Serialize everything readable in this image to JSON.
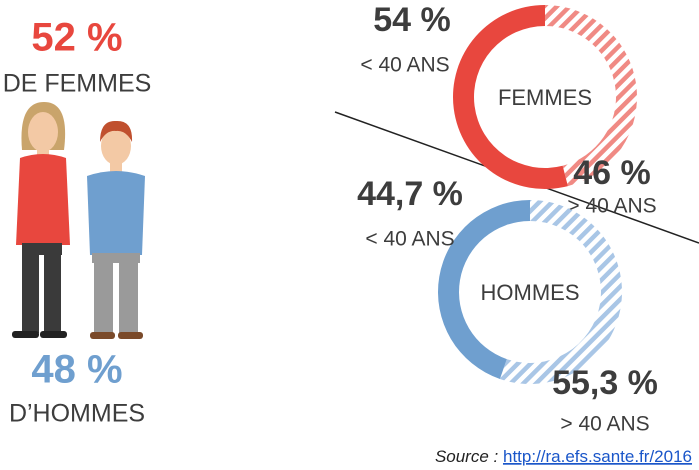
{
  "chart_data": [
    {
      "type": "figures",
      "categories": [
        "DE FEMMES",
        "D’HOMMES"
      ],
      "values": [
        52,
        48
      ],
      "value_labels": [
        "52 %",
        "48 %"
      ],
      "colors": [
        "#e8473e",
        "#6f9fcf"
      ]
    },
    {
      "type": "donut",
      "label": "FEMMES",
      "categories": [
        "< 40 ANS",
        "> 40 ANS"
      ],
      "values": [
        54,
        46
      ],
      "value_labels": [
        "54 %",
        "46 %"
      ],
      "colors": [
        "#e8473e",
        "#f08a84"
      ],
      "hatched": [
        false,
        true
      ]
    },
    {
      "type": "donut",
      "label": "HOMMES",
      "categories": [
        "< 40 ANS",
        "> 40 ANS"
      ],
      "values": [
        44.7,
        55.3
      ],
      "value_labels": [
        "44,7 %",
        "55,3 %"
      ],
      "colors": [
        "#6f9fcf",
        "#a9c6e6"
      ],
      "hatched": [
        false,
        true
      ]
    }
  ],
  "source": {
    "label": "Source :",
    "url": "http://ra.efs.sante.fr/2016"
  }
}
